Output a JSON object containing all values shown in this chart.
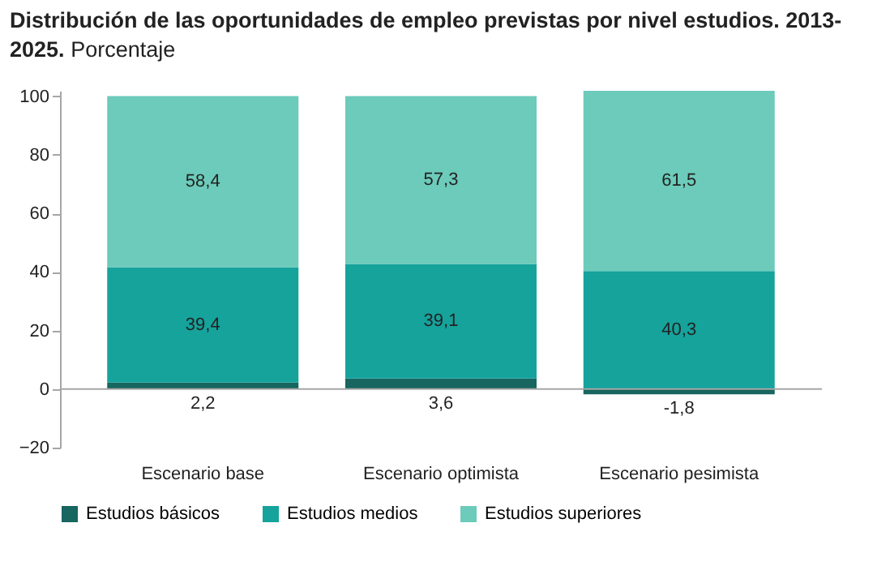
{
  "chart_data": {
    "type": "bar",
    "title": "Distribución de las oportunidades de empleo previstas por nivel estudios. 2013-2025.",
    "subtitle": "Porcentaje",
    "categories": [
      "Escenario base",
      "Escenario optimista",
      "Escenario pesimista"
    ],
    "stacked": true,
    "series": [
      {
        "name": "Estudios básicos",
        "color": "#17665f",
        "values": [
          2.2,
          3.6,
          -1.8
        ],
        "value_labels": [
          "2,2",
          "3,6",
          "-1,8"
        ]
      },
      {
        "name": "Estudios medios",
        "color": "#15a39c",
        "values": [
          39.4,
          39.1,
          40.3
        ],
        "value_labels": [
          "39,4",
          "39,1",
          "40,3"
        ]
      },
      {
        "name": "Estudios superiores",
        "color": "#6ccbba",
        "values": [
          58.4,
          57.3,
          61.5
        ],
        "value_labels": [
          "58,4",
          "57,3",
          "61,5"
        ]
      }
    ],
    "ylim": [
      -20,
      101.8
    ],
    "yticks": [
      -20,
      0,
      20,
      40,
      60,
      80,
      100
    ],
    "ref_lines": [
      {
        "axis": "y",
        "value": 0,
        "color": "#a6a6a6"
      }
    ],
    "legend": "bottom",
    "grid": false
  }
}
